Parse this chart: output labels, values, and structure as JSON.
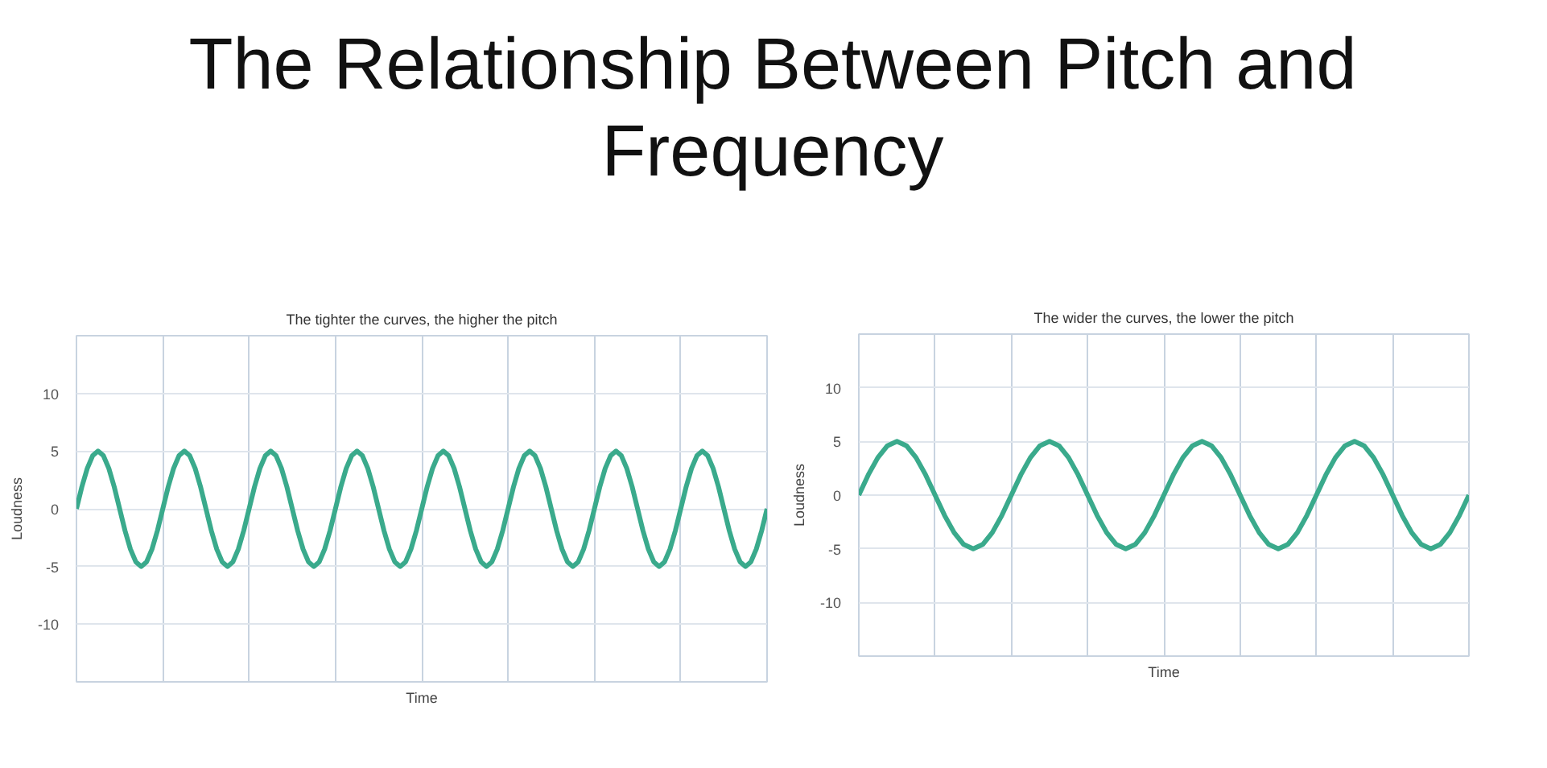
{
  "chart_data": [
    {
      "type": "other",
      "title": "The Relationship Between Pitch and Frequency"
    },
    {
      "type": "line",
      "title": "The tighter the curves, the higher the pitch",
      "xlabel": "Time",
      "ylabel": "Loudness",
      "ylim": [
        -15,
        15
      ],
      "yticks": [
        -10,
        -5,
        0,
        5,
        10
      ],
      "grid": true,
      "tick_labels": "y",
      "categories": [
        null,
        null,
        null,
        null,
        null,
        null,
        null,
        null,
        null,
        null,
        null,
        null,
        null,
        null,
        null,
        null,
        null,
        null,
        null,
        null,
        null,
        null,
        null,
        null,
        null,
        null,
        null,
        null,
        null,
        null,
        null,
        null,
        null,
        null,
        null,
        null,
        null,
        null,
        null,
        null,
        null,
        null,
        null,
        null,
        null,
        null,
        null,
        null,
        null,
        null,
        null,
        null,
        null,
        null,
        null,
        null,
        null,
        null,
        null,
        null,
        null,
        null,
        null,
        null,
        null,
        null,
        null,
        null,
        null,
        null,
        null,
        null,
        null,
        null,
        null,
        null,
        null,
        null,
        null,
        null,
        null,
        null,
        null,
        null,
        null,
        null,
        null,
        null,
        null,
        null,
        null,
        null,
        null,
        null,
        null,
        null,
        null,
        null,
        null,
        null,
        null,
        null,
        null,
        null,
        null,
        null,
        null,
        null,
        null,
        null,
        null,
        null,
        null,
        null,
        null,
        null,
        null,
        null,
        null,
        null,
        null,
        null,
        null,
        null,
        null,
        null,
        null,
        null,
        null
      ],
      "series": [
        {
          "color": "#3aaa8c",
          "values": [
            0,
            1.9,
            3.5,
            4.6,
            5,
            4.6,
            3.5,
            1.9,
            0,
            -1.9,
            -3.5,
            -4.6,
            -5,
            -4.6,
            -3.5,
            -1.9,
            0,
            1.9,
            3.5,
            4.6,
            5,
            4.6,
            3.5,
            1.9,
            0,
            -1.9,
            -3.5,
            -4.6,
            -5,
            -4.6,
            -3.5,
            -1.9,
            0,
            1.9,
            3.5,
            4.6,
            5,
            4.6,
            3.5,
            1.9,
            0,
            -1.9,
            -3.5,
            -4.6,
            -5,
            -4.6,
            -3.5,
            -1.9,
            0,
            1.9,
            3.5,
            4.6,
            5,
            4.6,
            3.5,
            1.9,
            0,
            -1.9,
            -3.5,
            -4.6,
            -5,
            -4.6,
            -3.5,
            -1.9,
            0,
            1.9,
            3.5,
            4.6,
            5,
            4.6,
            3.5,
            1.9,
            0,
            -1.9,
            -3.5,
            -4.6,
            -5,
            -4.6,
            -3.5,
            -1.9,
            0,
            1.9,
            3.5,
            4.6,
            5,
            4.6,
            3.5,
            1.9,
            0,
            -1.9,
            -3.5,
            -4.6,
            -5,
            -4.6,
            -3.5,
            -1.9,
            0,
            1.9,
            3.5,
            4.6,
            5,
            4.6,
            3.5,
            1.9,
            0,
            -1.9,
            -3.5,
            -4.6,
            -5,
            -4.6,
            -3.5,
            -1.9,
            0,
            1.9,
            3.5,
            4.6,
            5,
            4.6,
            3.5,
            1.9,
            0,
            -1.9,
            -3.5,
            -4.6,
            -5,
            -4.6,
            -3.5,
            -1.9,
            0
          ]
        }
      ]
    },
    {
      "type": "line",
      "title": "The wider the curves, the lower the pitch",
      "xlabel": "Time",
      "ylabel": "Loudness",
      "ylim": [
        -15,
        15
      ],
      "yticks": [
        -10,
        -5,
        0,
        5,
        10
      ],
      "grid": true,
      "tick_labels": "y",
      "categories": [
        null,
        null,
        null,
        null,
        null,
        null,
        null,
        null,
        null,
        null,
        null,
        null,
        null,
        null,
        null,
        null,
        null,
        null,
        null,
        null,
        null,
        null,
        null,
        null,
        null,
        null,
        null,
        null,
        null,
        null,
        null,
        null,
        null,
        null,
        null,
        null,
        null,
        null,
        null,
        null,
        null,
        null,
        null,
        null,
        null,
        null,
        null,
        null,
        null,
        null,
        null,
        null,
        null,
        null,
        null,
        null,
        null,
        null,
        null,
        null,
        null,
        null,
        null,
        null,
        null
      ],
      "series": [
        {
          "color": "#3aaa8c",
          "values": [
            0,
            1.9,
            3.5,
            4.6,
            5,
            4.6,
            3.5,
            1.9,
            0,
            -1.9,
            -3.5,
            -4.6,
            -5,
            -4.6,
            -3.5,
            -1.9,
            0,
            1.9,
            3.5,
            4.6,
            5,
            4.6,
            3.5,
            1.9,
            0,
            -1.9,
            -3.5,
            -4.6,
            -5,
            -4.6,
            -3.5,
            -1.9,
            0,
            1.9,
            3.5,
            4.6,
            5,
            4.6,
            3.5,
            1.9,
            0,
            -1.9,
            -3.5,
            -4.6,
            -5,
            -4.6,
            -3.5,
            -1.9,
            0,
            1.9,
            3.5,
            4.6,
            5,
            4.6,
            3.5,
            1.9,
            0,
            -1.9,
            -3.5,
            -4.6,
            -5,
            -4.6,
            -3.5,
            -1.9,
            0
          ]
        }
      ]
    }
  ]
}
